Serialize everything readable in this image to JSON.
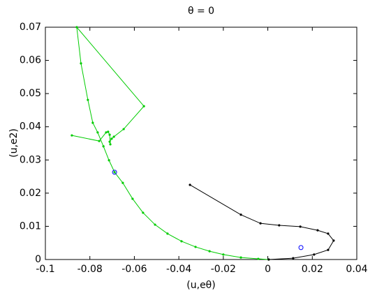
{
  "chart_data": {
    "type": "line",
    "title": "θ = 0",
    "x_label": "(u,eθ)",
    "y_label": "(u,e2)",
    "xlim": [
      -0.1,
      0.04
    ],
    "ylim": [
      0,
      0.07
    ],
    "xticks": [
      -0.1,
      -0.08,
      -0.06,
      -0.04,
      -0.02,
      0,
      0.02,
      0.04
    ],
    "yticks": [
      0,
      0.01,
      0.02,
      0.03,
      0.04,
      0.05,
      0.06,
      0.07
    ],
    "series": [
      {
        "color": "#00cc00",
        "line": true,
        "marker": "dot",
        "x": [
          -0.0881,
          -0.0758,
          -0.0727,
          -0.0718,
          -0.0711,
          -0.0708,
          -0.0711,
          -0.0702,
          -0.0692,
          -0.0648,
          -0.0557,
          -0.0859,
          -0.084,
          -0.0809,
          -0.0787,
          -0.0765,
          -0.0739,
          -0.0714,
          -0.0689,
          -0.0652,
          -0.0608,
          -0.0561,
          -0.0507,
          -0.0451,
          -0.0388,
          -0.0325,
          -0.0262,
          -0.02,
          -0.0121,
          -0.0043,
          0.0004
        ],
        "values": [
          0.0374,
          0.0357,
          0.0383,
          0.0385,
          0.0376,
          0.0347,
          0.0355,
          0.0364,
          0.037,
          0.0393,
          0.0462,
          0.07,
          0.0591,
          0.0481,
          0.0412,
          0.0383,
          0.0341,
          0.0299,
          0.0263,
          0.0231,
          0.0183,
          0.0141,
          0.0105,
          0.0078,
          0.0055,
          0.0038,
          0.0025,
          0.0015,
          0.0006,
          0.0002,
          0
        ]
      },
      {
        "color": "#000000",
        "line": true,
        "marker": "dot",
        "x": [
          -0.035,
          -0.0121,
          -0.0033,
          0.0051,
          0.0146,
          0.0224,
          0.0271,
          0.0296,
          0.0271,
          0.0208,
          0.0114,
          0.0004
        ],
        "values": [
          0.0225,
          0.0135,
          0.0109,
          0.0103,
          0.0099,
          0.0088,
          0.0078,
          0.0057,
          0.0029,
          0.0015,
          0.0004,
          0
        ]
      },
      {
        "color": "#0000ff",
        "line": false,
        "marker": "circle",
        "x": [
          -0.0689,
          0.0149
        ],
        "values": [
          0.0263,
          0.0036
        ]
      }
    ]
  }
}
